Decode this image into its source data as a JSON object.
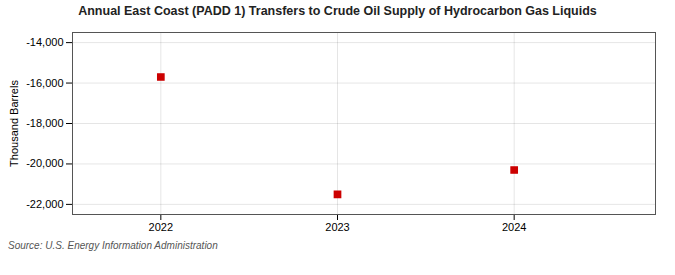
{
  "chart_data": {
    "type": "scatter",
    "title": "Annual East Coast (PADD 1) Transfers to Crude Oil Supply of Hydrocarbon Gas Liquids",
    "ylabel": "Thousand Barrels",
    "annotations": [
      "Source: U.S. Energy Information Administration"
    ],
    "x": [
      2022,
      2023,
      2024
    ],
    "values": [
      -15700,
      -21500,
      -20300
    ],
    "color": "#cc0000",
    "marker": "square",
    "xlim": [
      2021.5,
      2024.8
    ],
    "xticks": [
      2022,
      2023,
      2024
    ],
    "ylim": [
      -22500,
      -13500
    ],
    "yticks": [
      {
        "value": -14000,
        "label": "-14,000"
      },
      {
        "value": -16000,
        "label": "-16,000"
      },
      {
        "value": -18000,
        "label": "-18,000"
      },
      {
        "value": -20000,
        "label": "-20,000"
      },
      {
        "value": -22000,
        "label": "-22,000"
      }
    ],
    "grid": true
  }
}
